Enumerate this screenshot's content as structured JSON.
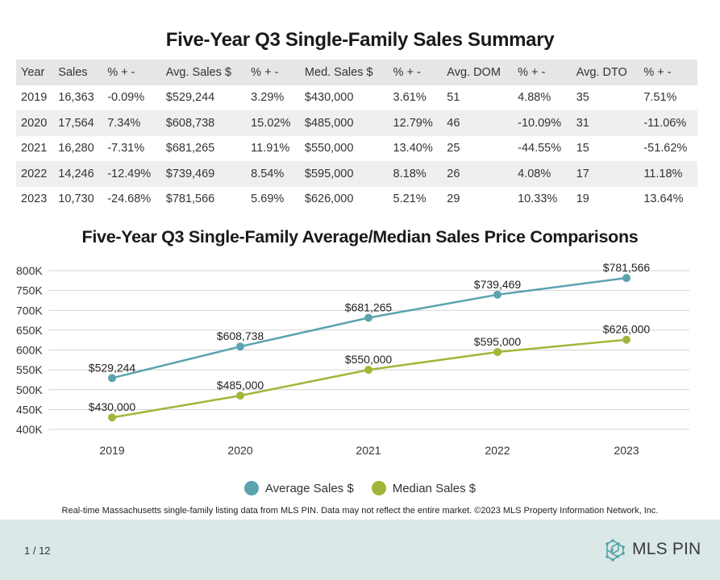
{
  "summary": {
    "title": "Five-Year Q3 Single-Family Sales Summary",
    "headers": [
      "Year",
      "Sales",
      "% + -",
      "Avg. Sales $",
      "% + -",
      "Med. Sales $",
      "% + -",
      "Avg. DOM",
      "% + -",
      "Avg. DTO",
      "% + -"
    ],
    "rows": [
      [
        "2019",
        "16,363",
        "-0.09%",
        "$529,244",
        "3.29%",
        "$430,000",
        "3.61%",
        "51",
        "4.88%",
        "35",
        "7.51%"
      ],
      [
        "2020",
        "17,564",
        "7.34%",
        "$608,738",
        "15.02%",
        "$485,000",
        "12.79%",
        "46",
        "-10.09%",
        "31",
        "-11.06%"
      ],
      [
        "2021",
        "16,280",
        "-7.31%",
        "$681,265",
        "11.91%",
        "$550,000",
        "13.40%",
        "25",
        "-44.55%",
        "15",
        "-51.62%"
      ],
      [
        "2022",
        "14,246",
        "-12.49%",
        "$739,469",
        "8.54%",
        "$595,000",
        "8.18%",
        "26",
        "4.08%",
        "17",
        "11.18%"
      ],
      [
        "2023",
        "10,730",
        "-24.68%",
        "$781,566",
        "5.69%",
        "$626,000",
        "5.21%",
        "29",
        "10.33%",
        "19",
        "13.64%"
      ]
    ]
  },
  "chart_data": {
    "type": "line",
    "title": "Five-Year Q3 Single-Family Average/Median Sales Price Comparisons",
    "categories": [
      "2019",
      "2020",
      "2021",
      "2022",
      "2023"
    ],
    "series": [
      {
        "name": "Average Sales $",
        "values": [
          529244,
          608738,
          681265,
          739469,
          781566
        ],
        "labels": [
          "$529,244",
          "$608,738",
          "$681,265",
          "$739,469",
          "$781,566"
        ],
        "color": "#5ba3af"
      },
      {
        "name": "Median Sales $",
        "values": [
          430000,
          485000,
          550000,
          595000,
          626000
        ],
        "labels": [
          "$430,000",
          "$485,000",
          "$550,000",
          "$595,000",
          "$626,000"
        ],
        "color": "#a3b539"
      }
    ],
    "y_ticks": [
      400000,
      450000,
      500000,
      550000,
      600000,
      650000,
      700000,
      750000,
      800000
    ],
    "y_tick_labels": [
      "400K",
      "450K",
      "500K",
      "550K",
      "600K",
      "650K",
      "700K",
      "750K",
      "800K"
    ],
    "ylim": [
      400000,
      800000
    ],
    "grid": true,
    "legend_position": "bottom"
  },
  "footnote": "Real-time Massachusetts single-family listing data from MLS PIN. Data may not reflect the entire market. ©2023 MLS Property Information Network, Inc.",
  "page_indicator": "1 / 12",
  "logo_text": "MLS PIN",
  "colors": {
    "bottom_bar": "#dbe8e8",
    "accent_teal": "#5ba3af",
    "accent_green": "#a3b539"
  }
}
